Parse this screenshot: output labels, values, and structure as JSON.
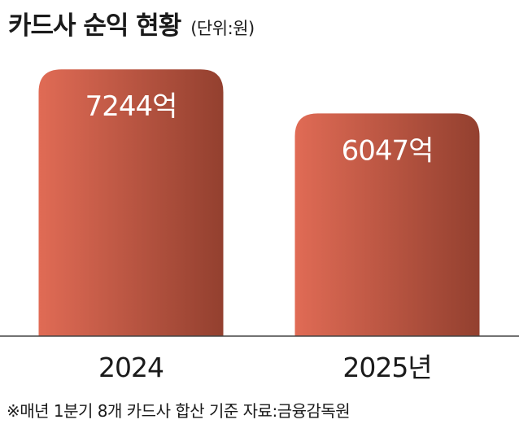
{
  "title": "카드사 순익 현황",
  "unit": "(단위:원)",
  "source": "※매년 1분기 8개 카드사 합산 기준 자료:금융감독원",
  "colors": {
    "bar_light": "#e06b55",
    "bar_dark": "#93402f",
    "axis": "#444444",
    "text": "#1a1a1a",
    "label": "#ffffff"
  },
  "chart_data": {
    "type": "bar",
    "categories": [
      "2024",
      "2025년"
    ],
    "values": [
      7244,
      6047
    ],
    "data_labels": [
      "7244억",
      "6047억"
    ],
    "title": "카드사 순익 현황",
    "xlabel": "",
    "ylabel": "",
    "ylim": [
      0,
      8000
    ],
    "grid": false,
    "legend": "none"
  }
}
